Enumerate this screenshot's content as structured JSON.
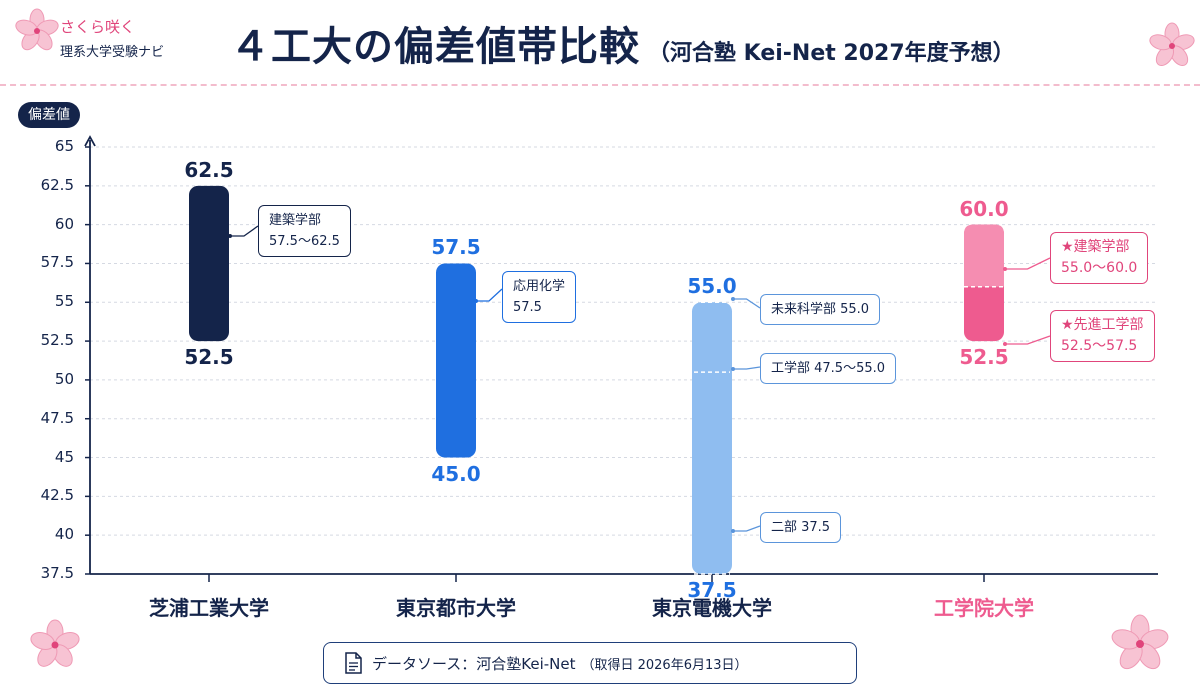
{
  "header": {
    "brand_name": "さくら咲く",
    "brand_sub": "理系大学受験ナビ",
    "title_main": "４工大の偏差値帯比較",
    "title_sub": "（河合塾 Kei-Net 2027年度予想）"
  },
  "colors": {
    "navy": "#14244a",
    "blue": "#1f6fe0",
    "light_blue": "#8fbdf0",
    "pink": "#ee5b8f",
    "pink_light": "#f58db1",
    "grid": "#d5d9e2"
  },
  "footer": {
    "icon": "document-icon",
    "text": "データソース：河合塾Kei-Net",
    "date": "（取得日 2026年6月13日）"
  },
  "callouts": {
    "c1": [
      "建築学部",
      "57.5〜62.5"
    ],
    "c2": [
      "応用化学",
      "57.5"
    ],
    "c3a": [
      "未来科学部 55.0"
    ],
    "c3b": [
      "工学部 47.5〜55.0"
    ],
    "c3c": [
      "二部 37.5"
    ],
    "c4a": [
      "★建築学部",
      "55.0〜60.0"
    ],
    "c4b": [
      "★先進工学部",
      "52.5〜57.5"
    ]
  },
  "chart_data": {
    "type": "range-bar",
    "ylabel": "偏差値",
    "ylim": [
      37.5,
      65
    ],
    "yticks": [
      "37.5",
      "40",
      "42.5",
      "45",
      "47.5",
      "50",
      "52.5",
      "55",
      "57.5",
      "60",
      "62.5",
      "65"
    ],
    "grid": true,
    "categories": [
      "芝浦工業大学",
      "東京都市大学",
      "東京電機大学",
      "工学院大学"
    ],
    "series": [
      {
        "low": 52.5,
        "high": 62.5,
        "low_label": "52.5",
        "high_label": "62.5"
      },
      {
        "low": 45.0,
        "high": 57.5,
        "low_label": "45.0",
        "high_label": "57.5"
      },
      {
        "low": 37.5,
        "high": 55.0,
        "low_label": "37.5",
        "high_label": "55.0",
        "dividers": [
          55.0,
          50.5,
          37.5
        ]
      },
      {
        "low": 52.5,
        "high": 60.0,
        "low_label": "52.5",
        "high_label": "60.0",
        "split": 56.0
      }
    ]
  }
}
